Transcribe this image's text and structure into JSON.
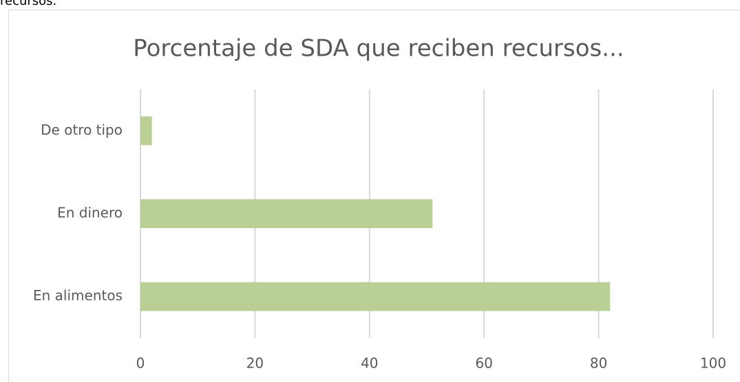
{
  "caption": "recursos.",
  "chart_data": {
    "type": "bar",
    "orientation": "horizontal",
    "title": "Porcentaje de SDA que reciben recursos...",
    "categories": [
      "En alimentos",
      "En dinero",
      "De otro tipo"
    ],
    "values": [
      82,
      51,
      2
    ],
    "color": "#b9cf96",
    "xlim": [
      0,
      100
    ],
    "xticks": [
      0,
      20,
      40,
      60,
      80,
      100
    ],
    "grid": true
  }
}
